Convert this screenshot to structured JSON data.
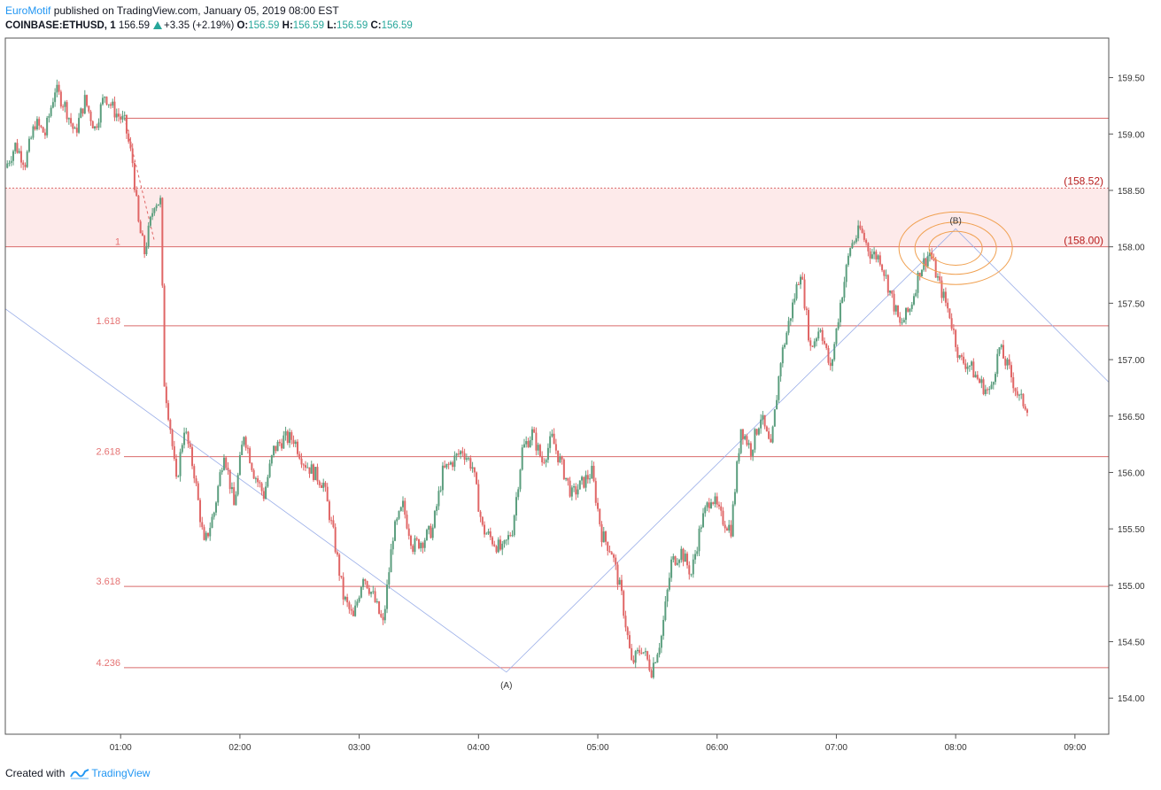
{
  "header": {
    "author": "EuroMotif",
    "published_text": " published on TradingView.com, January 05, 2019 08:00 EST",
    "symbol": "COINBASE:ETHUSD, 1",
    "last_price": "156.59",
    "change": "+3.35 (+2.19%)",
    "o_label": "O:",
    "o_value": "156.59",
    "h_label": "H:",
    "h_value": "156.59",
    "l_label": "L:",
    "l_value": "156.59",
    "c_label": "C:",
    "c_value": "156.59"
  },
  "footer": {
    "created_with": "Created with",
    "brand": "TradingView"
  },
  "colors": {
    "up": "#5b9e7e",
    "down": "#e06666",
    "fib": "#d96b6b",
    "zone": "#fdeaea",
    "diag": "#9aaee8",
    "circle": "#f0a050"
  },
  "chart_data": {
    "type": "candlestick",
    "x_ticks": [
      "01:00",
      "02:00",
      "03:00",
      "04:00",
      "05:00",
      "06:00",
      "07:00",
      "08:00",
      "09:00"
    ],
    "y_ticks": [
      "154.00",
      "154.50",
      "155.00",
      "155.50",
      "156.00",
      "156.50",
      "157.00",
      "157.50",
      "158.00",
      "158.50",
      "159.00",
      "159.50"
    ],
    "ylim": [
      153.68,
      159.85
    ],
    "x_range_minutes": [
      0,
      555
    ],
    "fib_levels": [
      {
        "label": "1",
        "value": 158.0
      },
      {
        "label": "1.618",
        "value": 157.3
      },
      {
        "label": "2.618",
        "value": 156.14
      },
      {
        "label": "3.618",
        "value": 154.99
      },
      {
        "label": "4.236",
        "value": 154.27
      }
    ],
    "top_level": 159.14,
    "zone": {
      "upper": 158.52,
      "lower": 158.0,
      "upper_label": "(158.52)",
      "lower_label": "(158.00)"
    },
    "wave_labels": [
      {
        "label": "(A)",
        "time_min": 252,
        "value": 154.23
      },
      {
        "label": "(B)",
        "time_min": 478,
        "value": 158.16
      }
    ],
    "diagonal_lines": [
      [
        [
          0,
          157.45
        ],
        [
          252,
          154.23
        ],
        [
          478,
          158.16
        ],
        [
          555,
          156.8
        ]
      ]
    ],
    "guide_points": [
      [
        60,
        159.14
      ],
      [
        75,
        158.05
      ]
    ],
    "candle_anchors": [
      [
        0,
        158.7
      ],
      [
        5,
        158.9
      ],
      [
        10,
        158.75
      ],
      [
        15,
        159.1
      ],
      [
        20,
        159.0
      ],
      [
        25,
        159.4
      ],
      [
        30,
        159.25
      ],
      [
        35,
        159.0
      ],
      [
        40,
        159.3
      ],
      [
        45,
        159.05
      ],
      [
        50,
        159.35
      ],
      [
        55,
        159.2
      ],
      [
        60,
        159.1
      ],
      [
        64,
        158.75
      ],
      [
        67,
        158.2
      ],
      [
        70,
        157.95
      ],
      [
        75,
        158.4
      ],
      [
        78,
        158.4
      ],
      [
        80,
        156.8
      ],
      [
        83,
        156.4
      ],
      [
        86,
        155.9
      ],
      [
        90,
        156.4
      ],
      [
        95,
        156.0
      ],
      [
        100,
        155.35
      ],
      [
        105,
        155.65
      ],
      [
        110,
        156.2
      ],
      [
        115,
        155.7
      ],
      [
        120,
        156.35
      ],
      [
        125,
        156.0
      ],
      [
        130,
        155.8
      ],
      [
        135,
        156.2
      ],
      [
        140,
        156.3
      ],
      [
        145,
        156.3
      ],
      [
        150,
        156.1
      ],
      [
        155,
        156.0
      ],
      [
        160,
        155.9
      ],
      [
        165,
        155.45
      ],
      [
        170,
        154.9
      ],
      [
        175,
        154.7
      ],
      [
        180,
        155.1
      ],
      [
        185,
        154.9
      ],
      [
        190,
        154.65
      ],
      [
        195,
        155.45
      ],
      [
        200,
        155.7
      ],
      [
        205,
        155.35
      ],
      [
        210,
        155.4
      ],
      [
        215,
        155.5
      ],
      [
        220,
        156.0
      ],
      [
        225,
        156.1
      ],
      [
        230,
        156.2
      ],
      [
        235,
        156.05
      ],
      [
        240,
        155.5
      ],
      [
        245,
        155.4
      ],
      [
        250,
        155.3
      ],
      [
        255,
        155.5
      ],
      [
        260,
        156.2
      ],
      [
        265,
        156.35
      ],
      [
        270,
        156.1
      ],
      [
        275,
        156.3
      ],
      [
        280,
        156.05
      ],
      [
        285,
        155.8
      ],
      [
        290,
        155.9
      ],
      [
        295,
        156.0
      ],
      [
        300,
        155.45
      ],
      [
        305,
        155.3
      ],
      [
        310,
        154.9
      ],
      [
        315,
        154.3
      ],
      [
        320,
        154.45
      ],
      [
        325,
        154.25
      ],
      [
        330,
        154.55
      ],
      [
        335,
        155.2
      ],
      [
        340,
        155.3
      ],
      [
        345,
        155.1
      ],
      [
        350,
        155.55
      ],
      [
        355,
        155.8
      ],
      [
        360,
        155.6
      ],
      [
        365,
        155.5
      ],
      [
        370,
        156.4
      ],
      [
        375,
        156.2
      ],
      [
        380,
        156.5
      ],
      [
        385,
        156.2
      ],
      [
        390,
        157.0
      ],
      [
        395,
        157.4
      ],
      [
        400,
        157.8
      ],
      [
        405,
        157.1
      ],
      [
        410,
        157.3
      ],
      [
        415,
        156.9
      ],
      [
        420,
        157.5
      ],
      [
        425,
        158.0
      ],
      [
        430,
        158.15
      ],
      [
        435,
        157.95
      ],
      [
        440,
        157.9
      ],
      [
        445,
        157.6
      ],
      [
        450,
        157.3
      ],
      [
        455,
        157.45
      ],
      [
        460,
        157.8
      ],
      [
        465,
        157.95
      ],
      [
        470,
        157.65
      ],
      [
        475,
        157.4
      ],
      [
        480,
        157.0
      ],
      [
        485,
        156.95
      ],
      [
        490,
        156.8
      ],
      [
        495,
        156.7
      ],
      [
        500,
        157.1
      ],
      [
        505,
        156.9
      ],
      [
        510,
        156.65
      ],
      [
        514,
        156.59
      ]
    ]
  }
}
